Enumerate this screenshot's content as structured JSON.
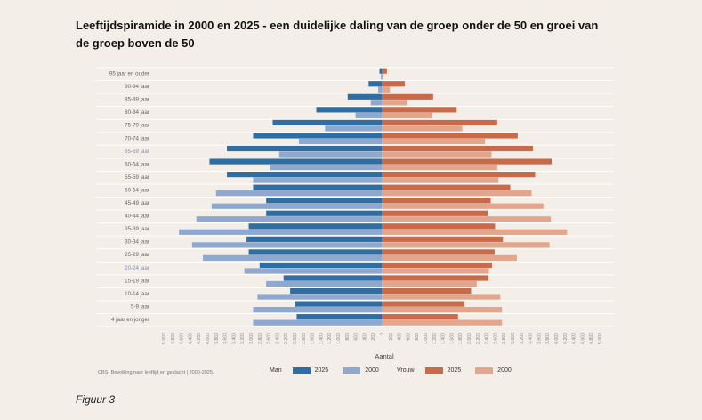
{
  "title": "Leeftijdspiramide in 2000 en 2025 - een duidelijke daling van de groep onder de 50 en groei van de groep boven de 50",
  "source": "CBS- Bevolking naar leeftijd en geslacht | 2000-2025.",
  "figure_label": "Figuur 3",
  "legend": {
    "man_label": "Man",
    "vrouw_label": "Vrouw",
    "y2025": "2025",
    "y2000": "2000"
  },
  "colors": {
    "man_2025": "#2f6ea3",
    "man_2000": "#8ea8cf",
    "vrouw_2025": "#c96a48",
    "vrouw_2000": "#e3a58c",
    "label_highlight": "#8a8fb0"
  },
  "chart_data": {
    "type": "bar",
    "subtype": "population-pyramid",
    "xlabel": "Aantal",
    "xlim": [
      -5000,
      5000
    ],
    "categories": [
      "95 jaar en ouder",
      "90-94 jaar",
      "85-89 jaar",
      "80-84 jaar",
      "75-79 jaar",
      "70-74 jaar",
      "65-69 jaar",
      "60-64 jaar",
      "55-59 jaar",
      "50-54 jaar",
      "45-49 jaar",
      "40-44 jaar",
      "35-39 jaar",
      "30-34 jaar",
      "25-29 jaar",
      "20-24 jaar",
      "15-19 jaar",
      "10-14 jaar",
      "5-9 jaar",
      "4 jaar en jonger"
    ],
    "highlighted_categories": [
      "65-69 jaar",
      "20-24 jaar"
    ],
    "ticks": [
      "5.000",
      "4.800",
      "4.600",
      "4.400",
      "4.200",
      "4.000",
      "3.800",
      "3.600",
      "3.400",
      "3.200",
      "3.000",
      "2.800",
      "2.600",
      "2.400",
      "2.200",
      "2.000",
      "1.800",
      "1.600",
      "1.400",
      "1.200",
      "1.000",
      "800",
      "600",
      "400",
      "200",
      "0",
      "200",
      "400",
      "600",
      "800",
      "1.000",
      "1.200",
      "1.400",
      "1.600",
      "1.800",
      "2.000",
      "2.200",
      "2.400",
      "2.600",
      "2.800",
      "3.000",
      "3.200",
      "3.400",
      "3.600",
      "3.800",
      "4.000",
      "4.200",
      "4.400",
      "4.600",
      "4.800",
      "5.000"
    ],
    "series": [
      {
        "name": "Man 2025",
        "values": [
          50,
          300,
          780,
          1500,
          2500,
          2950,
          3550,
          3950,
          3550,
          2950,
          2650,
          2650,
          3050,
          3100,
          3050,
          2800,
          2250,
          2100,
          2000,
          1950
        ]
      },
      {
        "name": "Man 2000",
        "values": [
          20,
          80,
          250,
          600,
          1300,
          1900,
          2350,
          2550,
          2950,
          3800,
          3900,
          4250,
          4650,
          4350,
          4100,
          3150,
          2650,
          2850,
          2950,
          2950
        ]
      },
      {
        "name": "Vrouw 2025",
        "values": [
          120,
          530,
          1180,
          1720,
          2650,
          3120,
          3470,
          3900,
          3520,
          2950,
          2500,
          2430,
          2600,
          2780,
          2590,
          2530,
          2450,
          2050,
          1900,
          1750
        ]
      },
      {
        "name": "Vrouw 2000",
        "values": [
          40,
          190,
          590,
          1160,
          1850,
          2370,
          2520,
          2650,
          2680,
          3440,
          3710,
          3880,
          4250,
          3850,
          3100,
          2460,
          2180,
          2720,
          2760,
          2760
        ]
      }
    ]
  }
}
